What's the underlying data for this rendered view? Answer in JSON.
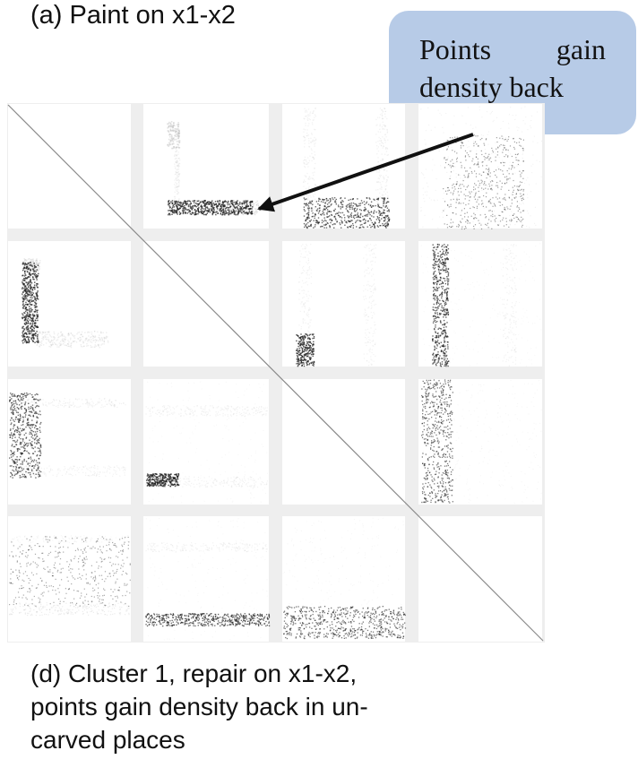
{
  "top_label": "(a)  Paint on x1-x2",
  "callout": {
    "text": "Points gain density back"
  },
  "caption": "(d) Cluster 1, repair on x1-x2,\npoints gain density back in un-\ncarved places",
  "colors": {
    "callout_bg": "#b7cbe7",
    "grid_gap": "#eeeeee",
    "panel_bg": "#ffffff",
    "dense_points": "#1f1f1f",
    "faint_points": "#b5b5b5",
    "arrow": "#111111"
  },
  "matrix": {
    "rows": 4,
    "cols": 4,
    "diagonal": "empty-with-line"
  }
}
